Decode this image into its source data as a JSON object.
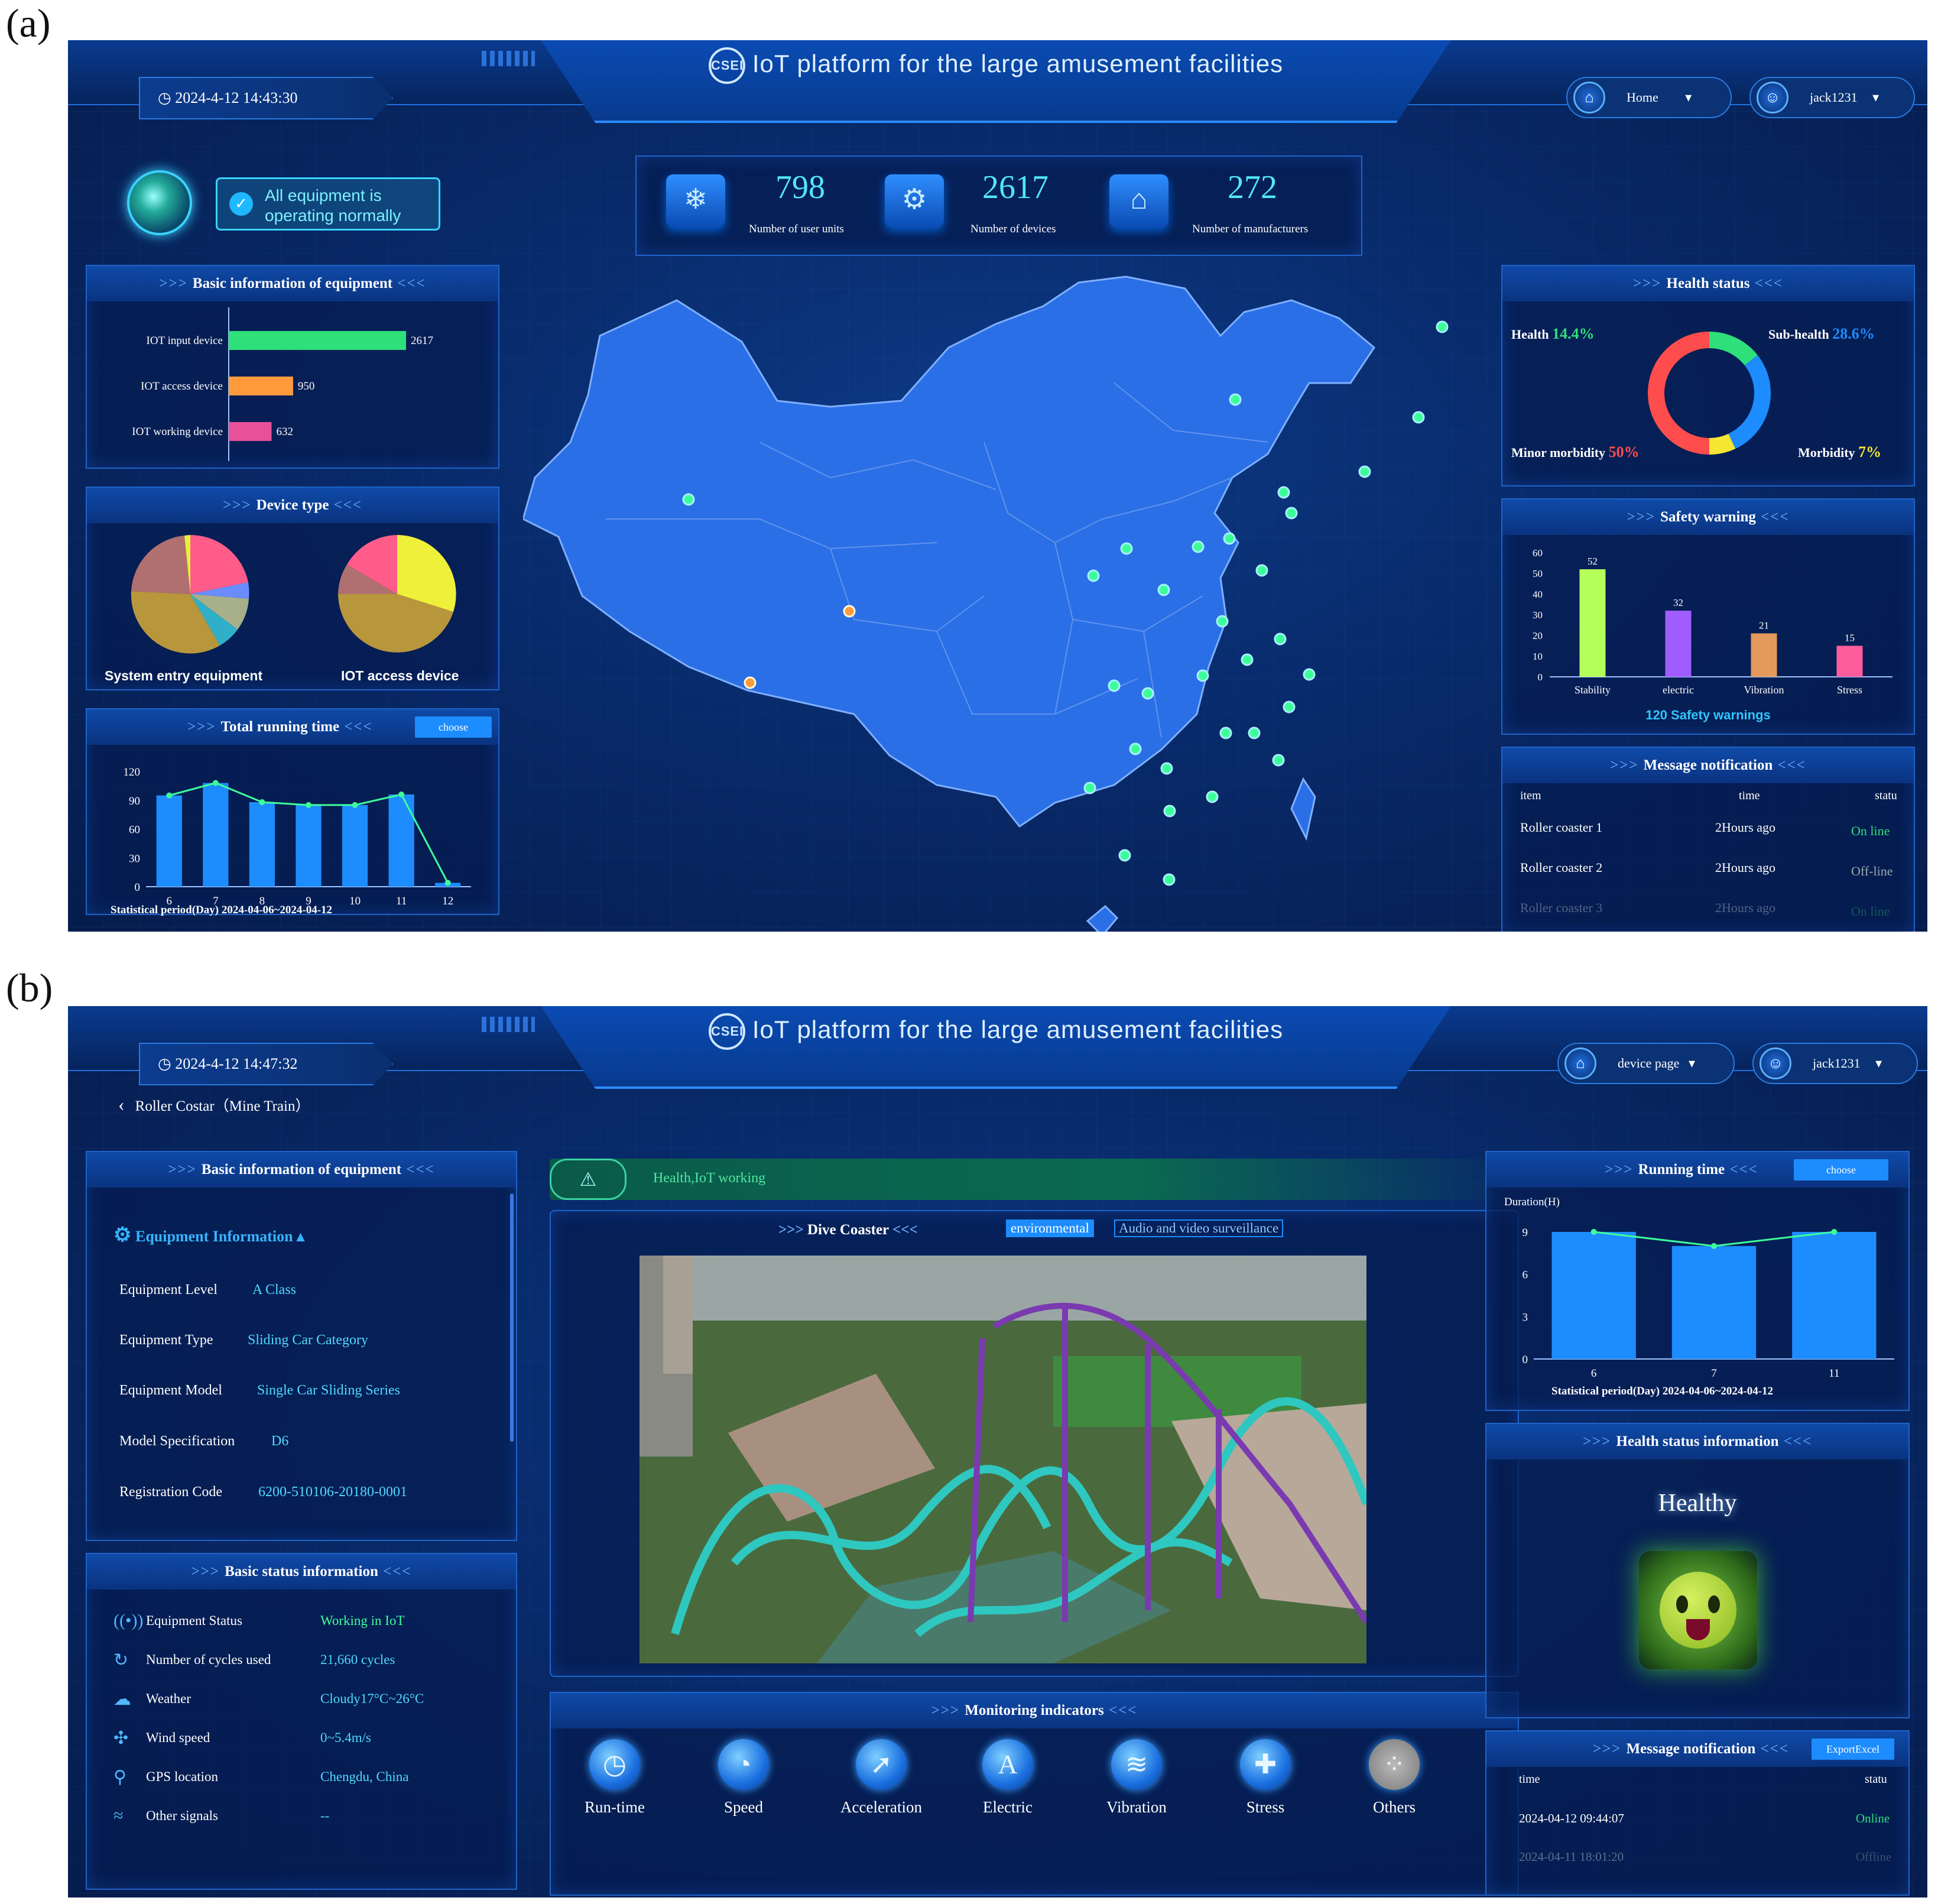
{
  "labels": {
    "a": "(a)",
    "b": "(b)"
  },
  "app_title": "IoT platform for the large amusement facilities",
  "logo_text": "CSEI",
  "screen_a": {
    "datetime": "2024-4-12 14:43:30",
    "nav_home": "Home",
    "user": "jack1231",
    "status_line1": "All equipment is",
    "status_line2": "operating normally",
    "stats": [
      {
        "value": "798",
        "label": "Number of user units"
      },
      {
        "value": "2617",
        "label": "Number of devices"
      },
      {
        "value": "272",
        "label": "Number of manufacturers"
      }
    ],
    "basic_info": {
      "title": "Basic information of equipment",
      "bars": [
        {
          "label": "IOT input device",
          "value": 2617,
          "value_text": "2617",
          "color": "#2de07a"
        },
        {
          "label": "IOT access device",
          "value": 950,
          "value_text": "950",
          "color": "#ff9a3c"
        },
        {
          "label": "IOT working device",
          "value": 632,
          "value_text": "632",
          "color": "#e8509a"
        }
      ]
    },
    "device_type": {
      "title": "Device type",
      "pie1_label": "System entry equipment",
      "pie2_label": "IOT access device"
    },
    "running_time": {
      "title": "Total running time",
      "choose": "choose",
      "period": "Statistical period(Day)   2024-04-06~2024-04-12"
    },
    "health": {
      "title": "Health status",
      "health_label": "Health",
      "health_value": "14.4%",
      "sub_label": "Sub-health",
      "sub_value": "28.6%",
      "minor_label": "Minor morbidity",
      "minor_value": "50%",
      "morb_label": "Morbidity",
      "morb_value": "7%"
    },
    "safety": {
      "title": "Safety warning",
      "total": "120 Safety warnings"
    },
    "messages": {
      "title": "Message notification",
      "headers": [
        "item",
        "time",
        "statu"
      ],
      "rows": [
        {
          "item": "Roller coaster 1",
          "time": "2Hours ago",
          "status": "On line"
        },
        {
          "item": "Roller coaster 2",
          "time": "2Hours ago",
          "status": "Off-line"
        },
        {
          "item": "Roller coaster 3",
          "time": "2Hours ago",
          "status": "On line"
        }
      ]
    }
  },
  "screen_b": {
    "datetime": "2024-4-12 14:47:32",
    "nav_page": "device page",
    "user": "jack1231",
    "breadcrumb": "Roller Costar（Mine Train）",
    "basic_info": {
      "title": "Basic information of equipment",
      "section": "Equipment Information",
      "fields": [
        {
          "label": "Equipment Level",
          "value": "A Class"
        },
        {
          "label": "Equipment Type",
          "value": "Sliding Car Category"
        },
        {
          "label": "Equipment Model",
          "value": "Single Car Sliding Series"
        },
        {
          "label": "Model Specification",
          "value": "D6"
        },
        {
          "label": "Registration Code",
          "value": "6200-510106-20180-0001"
        }
      ]
    },
    "status_info": {
      "title": "Basic status information",
      "rows": [
        {
          "label": "Equipment Status",
          "value": "Working in IoT",
          "icon": "signal-icon"
        },
        {
          "label": "Number of cycles used",
          "value": "21,660 cycles",
          "icon": "cycle-icon"
        },
        {
          "label": "Weather",
          "value": "Cloudy17°C~26°C",
          "icon": "cloud-icon"
        },
        {
          "label": "Wind speed",
          "value": "0~5.4m/s",
          "icon": "fan-icon"
        },
        {
          "label": "GPS location",
          "value": "Chengdu, China",
          "icon": "pin-icon"
        },
        {
          "label": "Other signals",
          "value": "--",
          "icon": "wifi-icon"
        }
      ]
    },
    "health_banner": "Health,IoT working",
    "center_title": "Dive Coaster",
    "tab_env": "environmental",
    "tab_av": "Audio and video surveillance",
    "monitoring": {
      "title": "Monitoring indicators",
      "items": [
        "Run-time",
        "Speed",
        "Acceleration",
        "Electric",
        "Vibration",
        "Stress",
        "Others"
      ]
    },
    "running_time": {
      "title": "Running time",
      "choose": "choose",
      "ylabel": "Duration(H)",
      "period": "Statistical period(Day)   2024-04-06~2024-04-12"
    },
    "health_info": {
      "title": "Health status information",
      "status": "Healthy"
    },
    "messages": {
      "title": "Message notification",
      "export": "ExportExcel",
      "headers": [
        "time",
        "statu"
      ],
      "rows": [
        {
          "time": "2024-04-12 09:44:07",
          "status": "Online"
        },
        {
          "time": "2024-04-11 18:01:20",
          "status": "Offline"
        }
      ]
    }
  },
  "chart_data": [
    {
      "type": "bar",
      "categories": [
        "6",
        "7",
        "8",
        "9",
        "10",
        "11",
        "12"
      ],
      "series": [
        {
          "values": [
            95,
            108,
            88,
            85,
            85,
            96,
            4
          ]
        }
      ],
      "line_values": [
        95,
        108,
        88,
        85,
        85,
        96,
        4
      ],
      "ylim": [
        0,
        120
      ],
      "yticks": [
        "0",
        "30",
        "60",
        "90",
        "120"
      ]
    },
    {
      "type": "bar",
      "categories": [
        "Stability",
        "electric",
        "Vibration",
        "Stress"
      ],
      "values": [
        52,
        32,
        21,
        15
      ],
      "value_labels": [
        "52",
        "32",
        "21",
        "15"
      ],
      "colors": [
        "#b4ff5a",
        "#a05cff",
        "#e39a5c",
        "#ff5c9c"
      ],
      "ylim": [
        0,
        60
      ],
      "yticks": [
        "0",
        "10",
        "20",
        "30",
        "40",
        "50",
        "60"
      ]
    },
    {
      "type": "pie",
      "values": [
        14.4,
        28.6,
        7,
        50
      ],
      "colors": [
        "#2de07a",
        "#1d8cff",
        "#f5e633",
        "#ff4d4d"
      ]
    },
    {
      "type": "bar",
      "categories": [
        "6",
        "7",
        "11"
      ],
      "values": [
        9,
        8,
        9
      ],
      "line_values": [
        9,
        8,
        9
      ],
      "ylim": [
        0,
        9
      ],
      "yticks": [
        "0",
        "3",
        "6",
        "9"
      ]
    }
  ],
  "colors": {
    "accent": "#1d8cff",
    "cyan": "#4fd9ff",
    "green": "#2de07a"
  }
}
